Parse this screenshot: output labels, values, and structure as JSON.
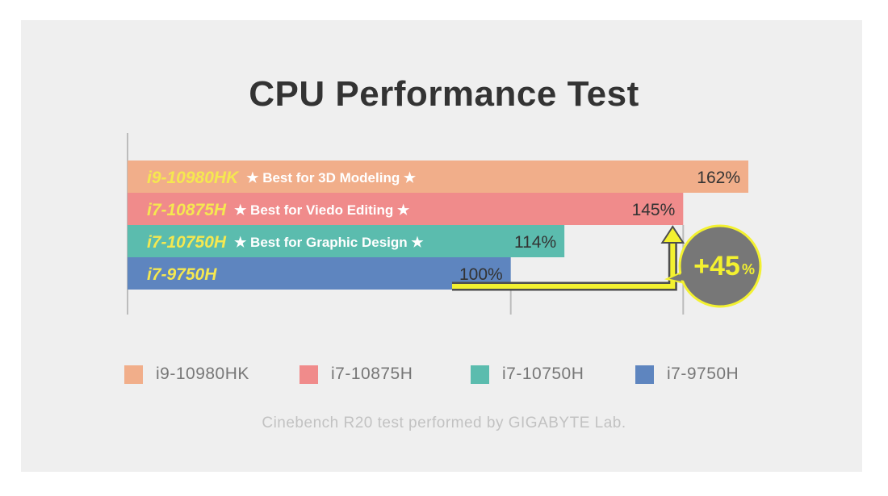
{
  "title": "CPU Performance Test",
  "footnote": "Cinebench R20 test performed by GIGABYTE Lab.",
  "highlight": {
    "value": "+45",
    "unit": "%"
  },
  "colors": {
    "panel": "#efefef",
    "axis": "#bcbcbc",
    "bar_label": "#f5e850",
    "arrow": "#f3f130",
    "bubble": "#777777",
    "bubble_border": "#f3f130"
  },
  "chart_data": {
    "type": "bar",
    "orientation": "horizontal",
    "grid": false,
    "legend_position": "bottom",
    "xlim": [
      0,
      162
    ],
    "series": [
      {
        "name": "i9-10980HK",
        "label": "i9-10980HK",
        "badge": "★ Best for 3D Modeling ★",
        "value": 162,
        "value_label": "162%",
        "color": "#f1ae8a"
      },
      {
        "name": "i7-10875H",
        "label": "i7-10875H",
        "badge": "★ Best for Viedo Editing ★",
        "value": 145,
        "value_label": "145%",
        "color": "#f08b8b"
      },
      {
        "name": "i7-10750H",
        "label": "i7-10750H",
        "badge": "★ Best for Graphic Design ★",
        "value": 114,
        "value_label": "114%",
        "color": "#5bbcae"
      },
      {
        "name": "i7-9750H",
        "label": "i7-9750H",
        "badge": "",
        "value": 100,
        "value_label": "100%",
        "color": "#5e85bf"
      }
    ]
  }
}
